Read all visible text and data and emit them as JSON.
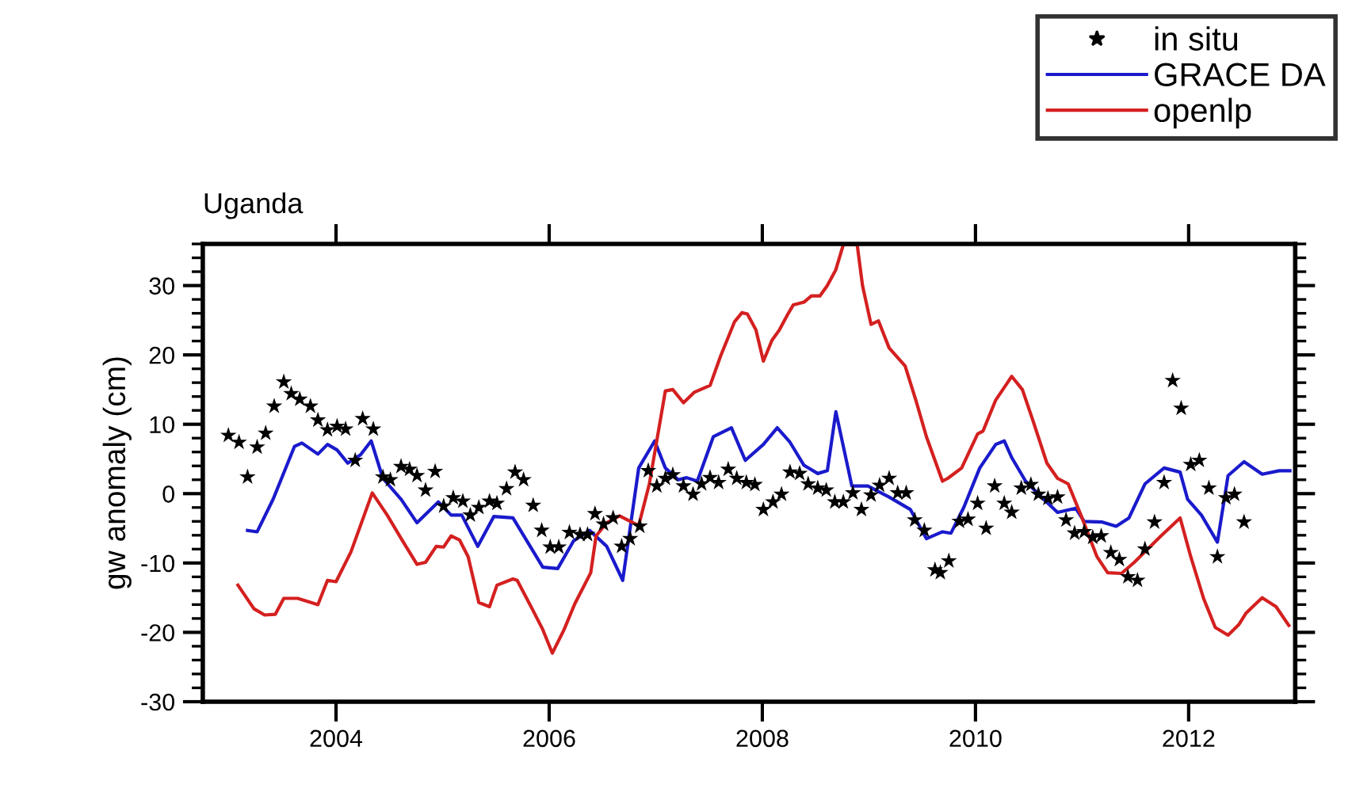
{
  "chart_data": {
    "type": "line",
    "title": "Uganda",
    "ylabel": "gw anomaly (cm)",
    "xlim": [
      2002.75,
      2013.0
    ],
    "xticks": [
      2004,
      2006,
      2008,
      2010,
      2012
    ],
    "ylim": [
      -30,
      36
    ],
    "yticks": [
      -30,
      -20,
      -10,
      0,
      10,
      20,
      30
    ],
    "grid": false,
    "legend": "top right",
    "series": [
      {
        "name": "in situ",
        "type": "scatter",
        "marker": "star",
        "color": "#000000",
        "x": [
          2002.99,
          2003.09,
          2003.17,
          2003.26,
          2003.34,
          2003.42,
          2003.51,
          2003.58,
          2003.66,
          2003.76,
          2003.83,
          2003.92,
          2004.01,
          2004.09,
          2004.18,
          2004.25,
          2004.35,
          2004.44,
          2004.51,
          2004.61,
          2004.69,
          2004.76,
          2004.84,
          2004.93,
          2005.01,
          2005.1,
          2005.19,
          2005.26,
          2005.34,
          2005.44,
          2005.51,
          2005.6,
          2005.68,
          2005.76,
          2005.85,
          2005.93,
          2006.01,
          2006.09,
          2006.19,
          2006.29,
          2006.36,
          2006.43,
          2006.51,
          2006.6,
          2006.68,
          2006.76,
          2006.85,
          2006.93,
          2007.01,
          2007.09,
          2007.16,
          2007.26,
          2007.35,
          2007.43,
          2007.51,
          2007.59,
          2007.68,
          2007.76,
          2007.85,
          2007.93,
          2008.01,
          2008.1,
          2008.18,
          2008.26,
          2008.35,
          2008.43,
          2008.52,
          2008.6,
          2008.68,
          2008.76,
          2008.85,
          2008.93,
          2009.02,
          2009.1,
          2009.19,
          2009.27,
          2009.35,
          2009.43,
          2009.52,
          2009.62,
          2009.67,
          2009.75,
          2009.85,
          2009.93,
          2010.02,
          2010.1,
          2010.18,
          2010.27,
          2010.34,
          2010.43,
          2010.52,
          2010.59,
          2010.68,
          2010.77,
          2010.85,
          2010.93,
          2011.02,
          2011.1,
          2011.18,
          2011.27,
          2011.35,
          2011.43,
          2011.52,
          2011.59,
          2011.68,
          2011.77,
          2011.85,
          2011.93,
          2012.02,
          2012.1,
          2012.19,
          2012.27,
          2012.35,
          2012.43,
          2012.52
        ],
        "values": [
          8.4,
          7.4,
          2.4,
          6.7,
          8.7,
          12.6,
          16.1,
          14.4,
          13.6,
          12.6,
          10.6,
          9.2,
          9.7,
          9.3,
          4.8,
          10.8,
          9.3,
          2.4,
          2.0,
          3.9,
          3.5,
          2.6,
          0.5,
          3.2,
          -1.8,
          -0.6,
          -1.1,
          -3.1,
          -2.0,
          -1.1,
          -1.4,
          0.7,
          3.1,
          2.0,
          -1.7,
          -5.3,
          -7.7,
          -7.7,
          -5.6,
          -5.9,
          -5.9,
          -2.9,
          -4.4,
          -3.5,
          -7.6,
          -6.5,
          -4.7,
          3.3,
          1.1,
          2.2,
          2.7,
          1.1,
          -0.1,
          1.4,
          2.3,
          1.6,
          3.5,
          2.2,
          1.6,
          1.3,
          -2.3,
          -1.2,
          -0.1,
          3.1,
          2.9,
          1.4,
          0.8,
          0.5,
          -1.2,
          -1.2,
          0.1,
          -2.3,
          -0.2,
          1.2,
          2.2,
          0.1,
          0.1,
          -3.8,
          -5.3,
          -11.0,
          -11.4,
          -9.7,
          -4.0,
          -3.7,
          -1.4,
          -5.0,
          1.1,
          -1.4,
          -2.7,
          0.8,
          1.3,
          -0.1,
          -0.7,
          -0.5,
          -3.8,
          -5.7,
          -5.5,
          -6.3,
          -6.1,
          -8.5,
          -9.5,
          -12.0,
          -12.5,
          -8.0,
          -4.1,
          1.6,
          16.3,
          12.3,
          4.2,
          4.8,
          0.8,
          -9.1,
          -0.6,
          -0.1,
          -4.1
        ]
      },
      {
        "name": "GRACE DA",
        "color": "#1a1acc",
        "x": [
          2003.17,
          2003.26,
          2003.41,
          2003.61,
          2003.68,
          2003.83,
          2003.92,
          2004.01,
          2004.11,
          2004.23,
          2004.33,
          2004.44,
          2004.61,
          2004.76,
          2004.96,
          2005.08,
          2005.18,
          2005.33,
          2005.48,
          2005.66,
          2005.94,
          2006.08,
          2006.23,
          2006.38,
          2006.54,
          2006.69,
          2006.84,
          2006.99,
          2007.09,
          2007.21,
          2007.29,
          2007.39,
          2007.54,
          2007.71,
          2007.84,
          2008.01,
          2008.14,
          2008.26,
          2008.39,
          2008.52,
          2008.61,
          2008.69,
          2008.84,
          2008.99,
          2009.19,
          2009.39,
          2009.54,
          2009.69,
          2009.77,
          2009.89,
          2010.04,
          2010.19,
          2010.27,
          2010.34,
          2010.47,
          2010.62,
          2010.77,
          2010.94,
          2011.02,
          2011.19,
          2011.32,
          2011.44,
          2011.59,
          2011.77,
          2011.92,
          2011.99,
          2012.12,
          2012.27,
          2012.37,
          2012.52,
          2012.69,
          2012.85,
          2012.95
        ],
        "values": [
          -5.3,
          -5.5,
          -0.8,
          6.8,
          7.3,
          5.7,
          7.1,
          6.3,
          4.4,
          5.6,
          7.6,
          2.2,
          -0.8,
          -4.2,
          -1.2,
          -3.1,
          -3.1,
          -7.6,
          -3.3,
          -3.5,
          -10.6,
          -10.8,
          -6.8,
          -5.3,
          -7.6,
          -12.5,
          3.7,
          7.6,
          3.7,
          2.0,
          2.3,
          1.8,
          8.2,
          9.5,
          4.8,
          7.1,
          9.5,
          7.4,
          4.1,
          2.9,
          3.3,
          11.8,
          1.1,
          1.1,
          -0.5,
          -2.3,
          -6.5,
          -5.5,
          -5.7,
          -2.0,
          3.7,
          7.1,
          7.6,
          5.2,
          1.8,
          -0.5,
          -2.7,
          -2.1,
          -4.0,
          -4.1,
          -4.7,
          -3.5,
          1.4,
          3.7,
          3.1,
          -0.8,
          -3.1,
          -7.0,
          2.6,
          4.6,
          2.8,
          3.3,
          3.3
        ]
      },
      {
        "name": "openlp",
        "color": "#d42020",
        "x": [
          2003.08,
          2003.23,
          2003.33,
          2003.43,
          2003.51,
          2003.64,
          2003.83,
          2003.92,
          2004.0,
          2004.14,
          2004.34,
          2004.48,
          2004.64,
          2004.76,
          2004.84,
          2004.94,
          2005.01,
          2005.08,
          2005.16,
          2005.24,
          2005.34,
          2005.44,
          2005.51,
          2005.66,
          2005.7,
          2005.84,
          2005.94,
          2006.03,
          2006.14,
          2006.24,
          2006.39,
          2006.44,
          2006.54,
          2006.66,
          2006.84,
          2006.94,
          2007.09,
          2007.16,
          2007.26,
          2007.36,
          2007.51,
          2007.61,
          2007.74,
          2007.81,
          2007.86,
          2007.94,
          2008.01,
          2008.09,
          2008.16,
          2008.24,
          2008.29,
          2008.39,
          2008.46,
          2008.54,
          2008.61,
          2008.69,
          2008.76,
          2008.89,
          2008.94,
          2009.02,
          2009.09,
          2009.19,
          2009.34,
          2009.44,
          2009.54,
          2009.69,
          2009.74,
          2009.87,
          2010.02,
          2010.07,
          2010.19,
          2010.34,
          2010.44,
          2010.54,
          2010.67,
          2010.77,
          2010.87,
          2010.99,
          2011.14,
          2011.24,
          2011.37,
          2011.49,
          2011.74,
          2011.92,
          2012.02,
          2012.14,
          2012.25,
          2012.37,
          2012.47,
          2012.54,
          2012.69,
          2012.82,
          2012.94
        ],
        "values": [
          -13.2,
          -16.6,
          -17.5,
          -17.4,
          -15.1,
          -15.1,
          -16.0,
          -12.5,
          -12.7,
          -8.4,
          0.1,
          -3.1,
          -7.2,
          -10.2,
          -9.9,
          -7.6,
          -7.7,
          -6.1,
          -6.7,
          -9.1,
          -15.7,
          -16.3,
          -13.2,
          -12.3,
          -12.5,
          -16.6,
          -19.6,
          -23.0,
          -19.6,
          -15.9,
          -11.4,
          -6.1,
          -4.2,
          -3.2,
          -4.6,
          1.4,
          14.8,
          15.0,
          13.1,
          14.6,
          15.6,
          19.9,
          24.8,
          26.1,
          25.9,
          23.6,
          19.1,
          22.1,
          23.6,
          25.9,
          27.2,
          27.6,
          28.5,
          28.5,
          30.0,
          32.3,
          35.9,
          35.9,
          30.0,
          24.4,
          24.9,
          21.0,
          18.4,
          13.5,
          8.2,
          1.8,
          2.2,
          3.7,
          8.6,
          9.0,
          13.5,
          16.9,
          15.0,
          10.5,
          4.4,
          2.2,
          1.4,
          -3.1,
          -9.1,
          -11.4,
          -11.5,
          -9.9,
          -6.1,
          -3.5,
          -9.1,
          -15.1,
          -19.3,
          -20.4,
          -18.9,
          -17.2,
          -15.0,
          -16.3,
          -19.0
        ]
      }
    ]
  }
}
